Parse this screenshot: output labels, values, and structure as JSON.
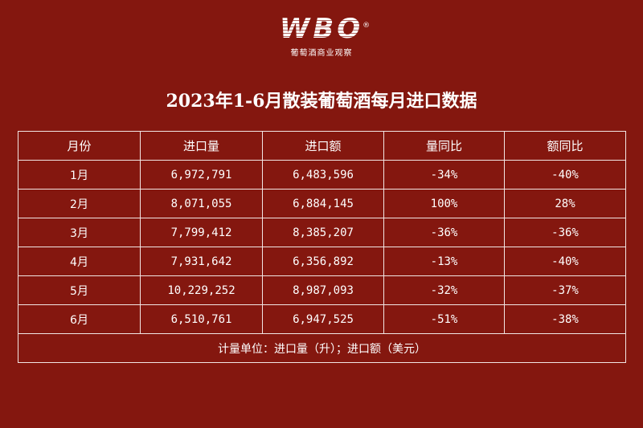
{
  "logo": {
    "mark": "WBO",
    "reg": "®",
    "subtitle": "葡萄酒商业观察"
  },
  "title": "2023年1-6月散装葡萄酒每月进口数据",
  "table": {
    "headers": [
      "月份",
      "进口量",
      "进口额",
      "量同比",
      "额同比"
    ],
    "rows": [
      [
        "1月",
        "6,972,791",
        "6,483,596",
        "-34%",
        "-40%"
      ],
      [
        "2月",
        "8,071,055",
        "6,884,145",
        "100%",
        "28%"
      ],
      [
        "3月",
        "7,799,412",
        "8,385,207",
        "-36%",
        "-36%"
      ],
      [
        "4月",
        "7,931,642",
        "6,356,892",
        "-13%",
        "-40%"
      ],
      [
        "5月",
        "10,229,252",
        "8,987,093",
        "-32%",
        "-37%"
      ],
      [
        "6月",
        "6,510,761",
        "6,947,525",
        "-51%",
        "-38%"
      ]
    ],
    "footer": "计量单位：进口量（升）；进口额（美元）"
  }
}
